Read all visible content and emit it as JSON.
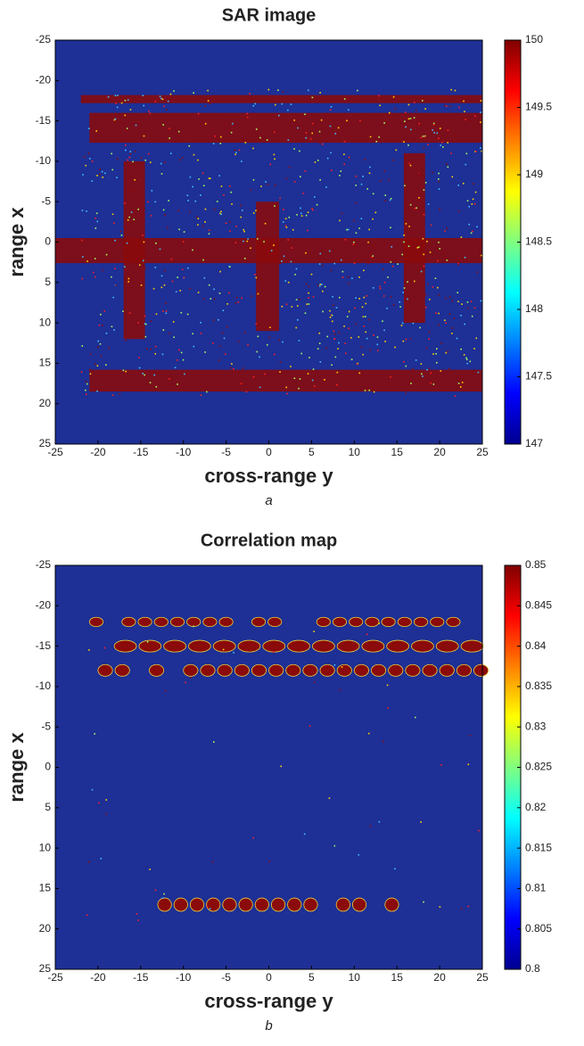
{
  "chart_data": [
    {
      "type": "heatmap",
      "title": "SAR image",
      "xlabel": "cross-range y",
      "ylabel": "range x",
      "caption": "a",
      "xlim": [
        -25,
        25
      ],
      "xticks": [
        -25,
        -20,
        -15,
        -10,
        -5,
        0,
        5,
        10,
        15,
        20,
        25
      ],
      "ylim": [
        -25,
        25
      ],
      "yticks": [
        -25,
        -20,
        -15,
        -10,
        -5,
        0,
        5,
        10,
        15,
        20,
        25
      ],
      "y_reversed": true,
      "colormap": "jet",
      "clim": [
        147,
        150
      ],
      "cticks": [
        147,
        147.5,
        148,
        148.5,
        149,
        149.5,
        150
      ]
    },
    {
      "type": "heatmap",
      "title": "Correlation map",
      "xlabel": "cross-range y",
      "ylabel": "range x",
      "caption": "b",
      "xlim": [
        -25,
        25
      ],
      "xticks": [
        -25,
        -20,
        -15,
        -10,
        -5,
        0,
        5,
        10,
        15,
        20,
        25
      ],
      "ylim": [
        -25,
        25
      ],
      "yticks": [
        -25,
        -20,
        -15,
        -10,
        -5,
        0,
        5,
        10,
        15,
        20,
        25
      ],
      "y_reversed": true,
      "colormap": "jet",
      "clim": [
        0.8,
        0.85
      ],
      "cticks": [
        0.8,
        0.805,
        0.81,
        0.815,
        0.82,
        0.825,
        0.83,
        0.835,
        0.84,
        0.845,
        0.85
      ]
    }
  ]
}
